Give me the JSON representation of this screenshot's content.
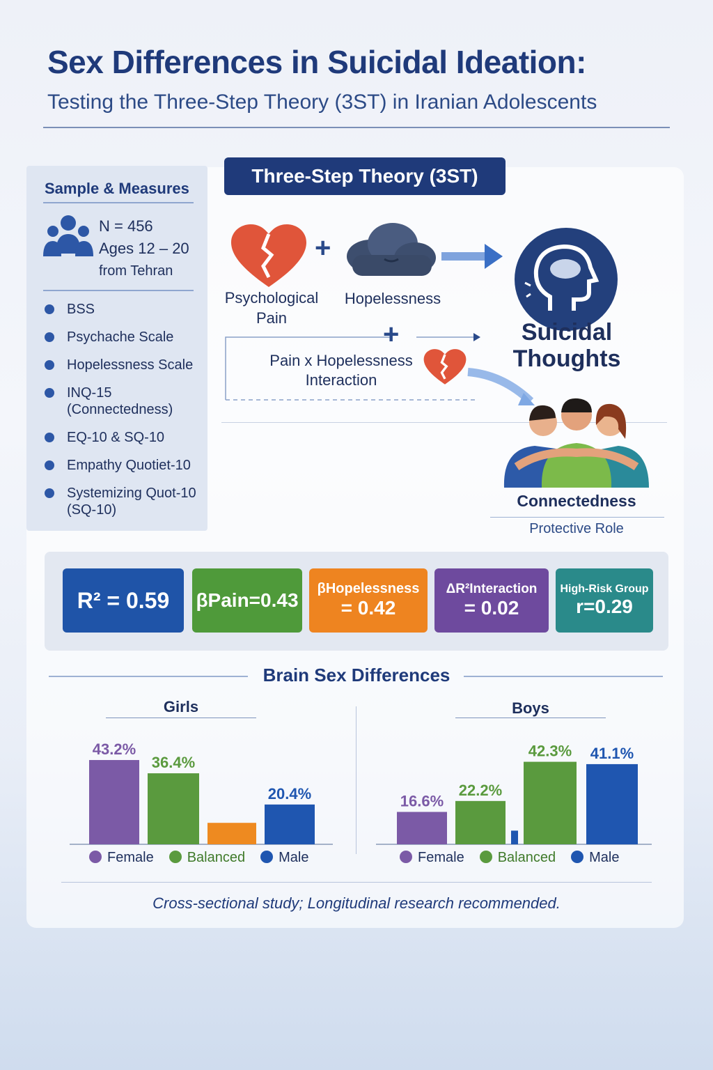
{
  "header": {
    "title": "Sex Differences in Suicidal Ideation:",
    "subtitle": "Testing the Three-Step Theory (3ST) in Iranian Adolescents"
  },
  "sample": {
    "heading": "Sample & Measures",
    "n": "N = 456",
    "ages": "Ages 12 – 20",
    "location": "from Tehran",
    "icon": "people-group-icon",
    "measures": [
      {
        "label": "BSS"
      },
      {
        "label": "Psychache Scale"
      },
      {
        "label": "Hopelessness Scale"
      },
      {
        "label": "INQ-15\n(Connectedness)"
      },
      {
        "label": "EQ-10 & SQ-10"
      },
      {
        "label": "Empathy Quotiet-10"
      },
      {
        "label": "Systemizing Quot-10\n(SQ-10)"
      }
    ]
  },
  "theory": {
    "badge": "Three-Step Theory (3ST)",
    "pain_label": "Psychological\nPain",
    "hopelessness_label": "Hopelessness",
    "outcome_label": "Suicidal\nThoughts",
    "interaction_label": "Pain x Hopelessness\nInteraction",
    "connectedness_label": "Connectedness",
    "protective_label": "Protective Role",
    "plus": "+",
    "icons": [
      "broken-heart-icon",
      "storm-cloud-icon",
      "head-brain-icon",
      "arrow-right-icon",
      "people-hugging-icon"
    ]
  },
  "stats": {
    "r2": "R² = 0.59",
    "beta_pain": "βPain=0.43",
    "beta_hope_top": "βHopelessness",
    "beta_hope_val": "= 0.42",
    "delta_top": "ΔR²Interaction",
    "delta_val": "= 0.02",
    "highrisk_top": "High-Risk Group",
    "highrisk_val": "r=0.29",
    "colors": {
      "r2": "#1f54a8",
      "pain": "#4f9a3a",
      "hope": "#ee8420",
      "interaction": "#6e4a9e",
      "highrisk": "#2a8a8a"
    }
  },
  "brain": {
    "heading": "Brain Sex Differences",
    "legend": {
      "female": "Female",
      "balanced": "Balanced",
      "male": "Male"
    },
    "colors": {
      "female": "#7b5aa6",
      "balanced": "#5a9a3e",
      "extreme": "#ee8a20",
      "male": "#1f56b0"
    }
  },
  "chart_data": [
    {
      "type": "bar",
      "title": "Girls",
      "categories": [
        "Female",
        "Balanced",
        "",
        "Male"
      ],
      "values": [
        43.2,
        36.4,
        11,
        20.4
      ],
      "labels": [
        "43.2%",
        "36.4%",
        "",
        "20.4%"
      ],
      "colors": [
        "#7b5aa6",
        "#5a9a3e",
        "#ee8a20",
        "#1f56b0"
      ],
      "ylim": [
        0,
        50
      ]
    },
    {
      "type": "bar",
      "title": "Boys",
      "categories": [
        "Female",
        "Balanced",
        "",
        "Balanced",
        "Male"
      ],
      "values": [
        16.6,
        22.2,
        7,
        42.3,
        41.1
      ],
      "labels": [
        "16.6%",
        "22.2%",
        "",
        "42.3%",
        "41.1%"
      ],
      "colors": [
        "#7b5aa6",
        "#5a9a3e",
        "#1f56b0",
        "#5a9a3e",
        "#1f56b0"
      ],
      "ylim": [
        0,
        50
      ]
    }
  ],
  "footer": "Cross-sectional study; Longitudinal research recommended."
}
